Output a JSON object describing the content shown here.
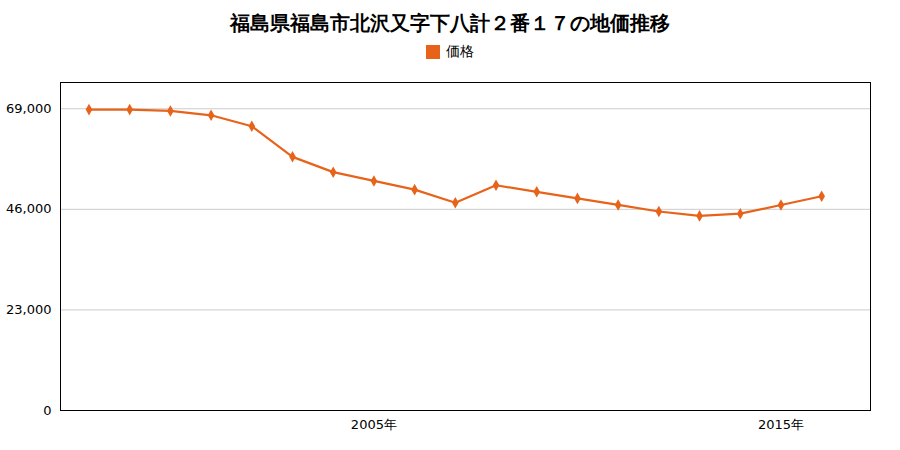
{
  "chart_data": {
    "type": "line",
    "title": "福島県福島市北沢又字下八計２番１７の地価推移",
    "x": [
      1998,
      1999,
      2000,
      2001,
      2002,
      2003,
      2004,
      2005,
      2006,
      2007,
      2008,
      2009,
      2010,
      2011,
      2012,
      2013,
      2014,
      2015,
      2016
    ],
    "series": [
      {
        "name": "価格",
        "color": "#e8631a",
        "marker": "diamond",
        "values": [
          68800,
          68800,
          68500,
          67500,
          65000,
          58000,
          54500,
          52500,
          50500,
          47500,
          51500,
          50000,
          48500,
          47000,
          45500,
          44500,
          45000,
          47000,
          49000
        ]
      }
    ],
    "xlim": [
      1997.3,
      2017.2
    ],
    "xticks": [
      {
        "value": 2005,
        "label": "2005年"
      },
      {
        "value": 2015,
        "label": "2015年"
      }
    ],
    "ylim": [
      0,
      75000
    ],
    "yticks": [
      0,
      {
        "value": 23000,
        "label": "23,000"
      },
      {
        "value": 46000,
        "label": "46,000"
      },
      {
        "value": 69000,
        "label": "69,000"
      }
    ],
    "grid": "y",
    "legend": "top"
  }
}
